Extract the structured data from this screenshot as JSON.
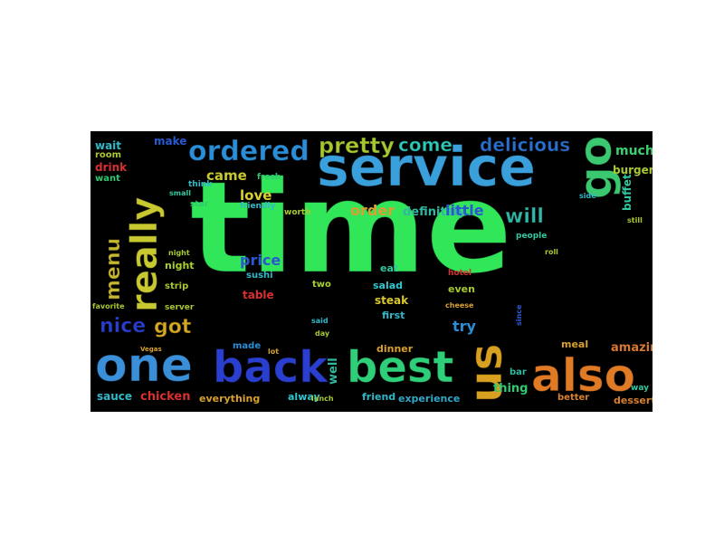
{
  "wordcloud": {
    "background": "#000000",
    "words": [
      {
        "text": "time",
        "color": "#32e65a"
      },
      {
        "text": "service",
        "color": "#3aa0dc"
      },
      {
        "text": "one",
        "color": "#3a8fd8"
      },
      {
        "text": "back",
        "color": "#2a3fd0"
      },
      {
        "text": "best",
        "color": "#2fcf7a"
      },
      {
        "text": "also",
        "color": "#e07a24"
      },
      {
        "text": "us",
        "color": "#d8a020"
      },
      {
        "text": "go",
        "color": "#3ac870"
      },
      {
        "text": "really",
        "color": "#c8c830"
      },
      {
        "text": "ordered",
        "color": "#2a8fd8"
      },
      {
        "text": "pretty",
        "color": "#a8c830"
      },
      {
        "text": "come",
        "color": "#30c8b8"
      },
      {
        "text": "delicious",
        "color": "#2a70d0"
      },
      {
        "text": "menu",
        "color": "#c8b830"
      },
      {
        "text": "nice",
        "color": "#2a3fd0"
      },
      {
        "text": "got",
        "color": "#d8a820"
      },
      {
        "text": "will",
        "color": "#30b8a8"
      },
      {
        "text": "order",
        "color": "#d8a030"
      },
      {
        "text": "definitely",
        "color": "#30b8a0"
      },
      {
        "text": "little",
        "color": "#2a58d0"
      },
      {
        "text": "came",
        "color": "#c8c830"
      },
      {
        "text": "love",
        "color": "#d8d030"
      },
      {
        "text": "price",
        "color": "#2a58d0"
      },
      {
        "text": "try",
        "color": "#2a8fd8"
      },
      {
        "text": "well",
        "color": "#30b8a0"
      },
      {
        "text": "thing",
        "color": "#30c870"
      },
      {
        "text": "amazing",
        "color": "#d87830"
      },
      {
        "text": "dessert",
        "color": "#d88030"
      },
      {
        "text": "chicken",
        "color": "#d83030"
      },
      {
        "text": "sauce",
        "color": "#30b8c8"
      },
      {
        "text": "everything",
        "color": "#d8a030"
      },
      {
        "text": "alway",
        "color": "#30c8d0"
      },
      {
        "text": "friend",
        "color": "#30b8c8"
      },
      {
        "text": "experience",
        "color": "#30a8c8"
      },
      {
        "text": "better",
        "color": "#d88030"
      },
      {
        "text": "much",
        "color": "#3ad070"
      },
      {
        "text": "burger",
        "color": "#a8c830"
      },
      {
        "text": "buffet",
        "color": "#30c8a0"
      },
      {
        "text": "make",
        "color": "#2a58d0"
      },
      {
        "text": "wait",
        "color": "#30b8c8"
      },
      {
        "text": "room",
        "color": "#a8c830"
      },
      {
        "text": "drink",
        "color": "#d83030"
      },
      {
        "text": "want",
        "color": "#30c870"
      },
      {
        "text": "night",
        "color": "#a8d030"
      },
      {
        "text": "table",
        "color": "#d83030"
      },
      {
        "text": "steak",
        "color": "#d8c830"
      },
      {
        "text": "salad",
        "color": "#30c8d0"
      },
      {
        "text": "first",
        "color": "#30b8c8"
      },
      {
        "text": "even",
        "color": "#a8c830"
      },
      {
        "text": "eat",
        "color": "#30c8a0"
      },
      {
        "text": "dinner",
        "color": "#d8a030"
      },
      {
        "text": "meal",
        "color": "#d8a030"
      },
      {
        "text": "bar",
        "color": "#30b8a0"
      },
      {
        "text": "made",
        "color": "#2a8fd8"
      },
      {
        "text": "two",
        "color": "#a8d030"
      },
      {
        "text": "sushi",
        "color": "#30b8c8"
      },
      {
        "text": "strip",
        "color": "#a8c830"
      },
      {
        "text": "server",
        "color": "#a8c830"
      },
      {
        "text": "people",
        "color": "#30c8a0"
      },
      {
        "text": "fresh",
        "color": "#30c870"
      },
      {
        "text": "think",
        "color": "#30b8c8"
      },
      {
        "text": "star",
        "color": "#30c870"
      },
      {
        "text": "friendly",
        "color": "#30b8c8"
      },
      {
        "text": "worth",
        "color": "#a8c830"
      },
      {
        "text": "way",
        "color": "#30c8a0"
      },
      {
        "text": "cheese",
        "color": "#d8a030"
      },
      {
        "text": "hotel",
        "color": "#d83030"
      },
      {
        "text": "favorite",
        "color": "#a8c830"
      },
      {
        "text": "lunch",
        "color": "#a8c830"
      },
      {
        "text": "roll",
        "color": "#a8c830"
      },
      {
        "text": "still",
        "color": "#a8c830"
      },
      {
        "text": "side",
        "color": "#30b8c8"
      },
      {
        "text": "small",
        "color": "#30c8a0"
      },
      {
        "text": "lot",
        "color": "#d8a030"
      },
      {
        "text": "said",
        "color": "#30b8c8"
      },
      {
        "text": "since",
        "color": "#2a58d0"
      },
      {
        "text": "night",
        "color": "#a8c830"
      },
      {
        "text": "Vegas",
        "color": "#d8a030"
      },
      {
        "text": "day",
        "color": "#a8c830"
      }
    ]
  }
}
